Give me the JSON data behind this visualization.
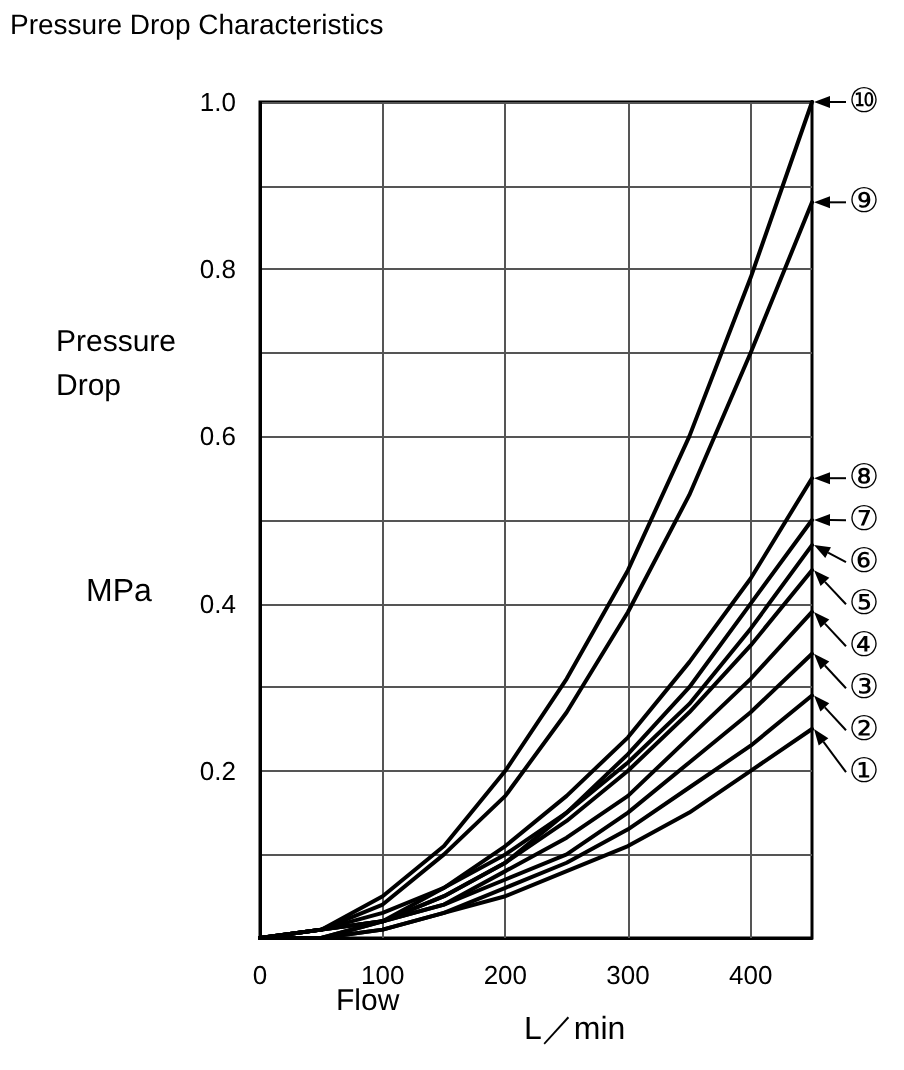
{
  "chart_data": {
    "type": "line",
    "title": "Pressure Drop Characteristics",
    "xlabel": "Flow",
    "ylabel": "Pressure Drop",
    "annotations": [
      "MPa",
      "L／min"
    ],
    "x": [
      0,
      50,
      100,
      150,
      200,
      250,
      300,
      350,
      400,
      450
    ],
    "xlim": [
      0,
      450
    ],
    "xticks": [
      0,
      100,
      200,
      300,
      400
    ],
    "ylim": [
      0,
      1
    ],
    "yticks": [
      {
        "value": 0,
        "label": null
      },
      {
        "value": 0.1,
        "label": null
      },
      0.2,
      {
        "value": 0.3,
        "label": null
      },
      0.4,
      {
        "value": 0.5,
        "label": null
      },
      0.6,
      {
        "value": 0.7,
        "label": null
      },
      0.8,
      {
        "value": 0.9,
        "label": null
      },
      {
        "value": 1,
        "label": "1.0"
      }
    ],
    "grid": true,
    "legend": "right",
    "marker": "none",
    "line_style": "solid",
    "series": [
      {
        "name": "①",
        "color": "#000000",
        "values": [
          0,
          0,
          0.01,
          0.03,
          0.05,
          0.08,
          0.11,
          0.15,
          0.2,
          0.25
        ]
      },
      {
        "name": "②",
        "color": "#000000",
        "values": [
          0,
          0,
          0.01,
          0.03,
          0.06,
          0.09,
          0.13,
          0.18,
          0.23,
          0.29
        ]
      },
      {
        "name": "③",
        "color": "#000000",
        "values": [
          0,
          0,
          0.02,
          0.04,
          0.07,
          0.1,
          0.15,
          0.21,
          0.27,
          0.34
        ]
      },
      {
        "name": "④",
        "color": "#000000",
        "values": [
          0,
          0,
          0.02,
          0.04,
          0.08,
          0.12,
          0.17,
          0.24,
          0.31,
          0.39
        ]
      },
      {
        "name": "⑤",
        "color": "#000000",
        "values": [
          0,
          0.01,
          0.02,
          0.05,
          0.09,
          0.14,
          0.2,
          0.27,
          0.35,
          0.44
        ]
      },
      {
        "name": "⑥",
        "color": "#000000",
        "values": [
          0,
          0.01,
          0.02,
          0.05,
          0.09,
          0.15,
          0.21,
          0.28,
          0.37,
          0.47
        ]
      },
      {
        "name": "⑦",
        "color": "#000000",
        "values": [
          0,
          0.01,
          0.02,
          0.06,
          0.1,
          0.15,
          0.22,
          0.3,
          0.4,
          0.5
        ]
      },
      {
        "name": "⑧",
        "color": "#000000",
        "values": [
          0,
          0.01,
          0.03,
          0.06,
          0.11,
          0.17,
          0.24,
          0.33,
          0.43,
          0.55
        ]
      },
      {
        "name": "⑨",
        "color": "#000000",
        "values": [
          0,
          0.01,
          0.04,
          0.1,
          0.17,
          0.27,
          0.39,
          0.53,
          0.7,
          0.88
        ]
      },
      {
        "name": "⑩",
        "color": "#000000",
        "values": [
          0,
          0.01,
          0.05,
          0.11,
          0.2,
          0.31,
          0.44,
          0.6,
          0.79,
          1.0
        ]
      }
    ]
  }
}
